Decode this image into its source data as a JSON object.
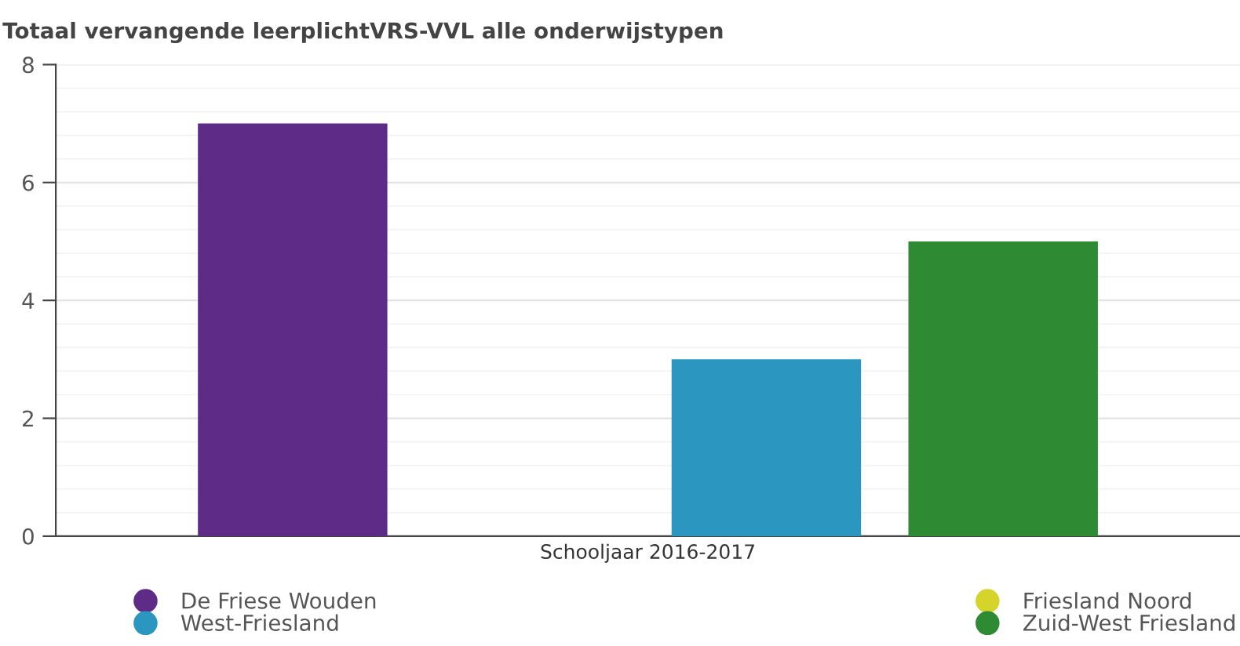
{
  "chart_data": {
    "type": "bar",
    "title": "Totaal vervangende leerplichtVRS-VVL alle onderwijstypen",
    "categories": [
      "Schooljaar 2016-2017"
    ],
    "series": [
      {
        "name": "De Friese Wouden",
        "color": "#5e2b86",
        "values": [
          7
        ]
      },
      {
        "name": "Friesland Noord",
        "color": "#d4d42a",
        "values": [
          0
        ]
      },
      {
        "name": "West-Friesland",
        "color": "#2b97c0",
        "values": [
          3
        ]
      },
      {
        "name": "Zuid-West Friesland",
        "color": "#2e8a33",
        "values": [
          5
        ]
      }
    ],
    "ylim": [
      0,
      8
    ],
    "yticks": [
      0,
      2,
      4,
      6,
      8
    ],
    "grid": "y",
    "legend": "bottom"
  }
}
